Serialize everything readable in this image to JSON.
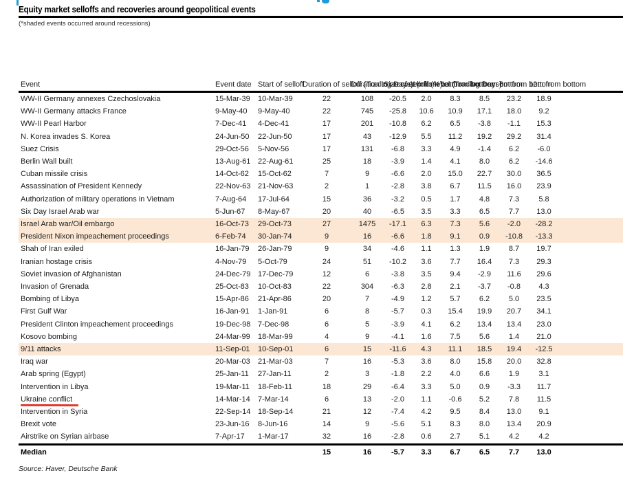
{
  "page": {
    "title": "Equity market selloffs and recoveries around geopolitical events",
    "subtitle": "(*shaded events occurred around recessions)",
    "source": "Source: Haver, Deutsche Bank",
    "colors": {
      "recession_shading": "#fbe7d3",
      "annotation_red": "#e0392e",
      "clipped_header_blue": "#1f9cd8",
      "rule_black": "#000000"
    }
  },
  "table": {
    "columns": [
      {
        "key": "event",
        "label": "Event"
      },
      {
        "key": "event_date",
        "label": "Event date"
      },
      {
        "key": "start_of_selloff",
        "label": "Start of\nselloff"
      },
      {
        "key": "duration_selloff",
        "label": "Duration\nof selloff\n(Trading\nDays)"
      },
      {
        "key": "duration_recover",
        "label": "Duration to\nrecover\nprior level\n(Trading\nDays)"
      },
      {
        "key": "size_selloff",
        "label": "Size of\nselloff\n(%)"
      },
      {
        "key": "w1",
        "label": "1w\nfrom\nbottom"
      },
      {
        "key": "m1",
        "label": "1m\nfrom\nbottom"
      },
      {
        "key": "m3",
        "label": "3m\nfrom\nbottom"
      },
      {
        "key": "m6",
        "label": "6m\nfrom\nbottom"
      },
      {
        "key": "m12",
        "label": "12m\nfrom\nbottom"
      }
    ],
    "rows": [
      {
        "event": "WW-II Germany annexes Czechoslovakia",
        "event_date": "15-Mar-39",
        "start_of_selloff": "10-Mar-39",
        "duration_selloff": "22",
        "duration_recover": "108",
        "size_selloff": "-20.5",
        "w1": "2.0",
        "m1": "8.3",
        "m3": "8.5",
        "m6": "23.2",
        "m12": "18.9"
      },
      {
        "event": "WW-II Germany attacks France",
        "event_date": "9-May-40",
        "start_of_selloff": "9-May-40",
        "duration_selloff": "22",
        "duration_recover": "745",
        "size_selloff": "-25.8",
        "w1": "10.6",
        "m1": "10.9",
        "m3": "17.1",
        "m6": "18.0",
        "m12": "9.2"
      },
      {
        "event": "WW-II Pearl Harbor",
        "event_date": "7-Dec-41",
        "start_of_selloff": "4-Dec-41",
        "duration_selloff": "17",
        "duration_recover": "201",
        "size_selloff": "-10.8",
        "w1": "6.2",
        "m1": "6.5",
        "m3": "-3.8",
        "m6": "-1.1",
        "m12": "15.3"
      },
      {
        "event": "N. Korea invades S. Korea",
        "event_date": "24-Jun-50",
        "start_of_selloff": "22-Jun-50",
        "duration_selloff": "17",
        "duration_recover": "43",
        "size_selloff": "-12.9",
        "w1": "5.5",
        "m1": "11.2",
        "m3": "19.2",
        "m6": "29.2",
        "m12": "31.4"
      },
      {
        "event": "Suez Crisis",
        "event_date": "29-Oct-56",
        "start_of_selloff": "5-Nov-56",
        "duration_selloff": "17",
        "duration_recover": "131",
        "size_selloff": "-6.8",
        "w1": "3.3",
        "m1": "4.9",
        "m3": "-1.4",
        "m6": "6.2",
        "m12": "-6.0"
      },
      {
        "event": "Berlin Wall built",
        "event_date": "13-Aug-61",
        "start_of_selloff": "22-Aug-61",
        "duration_selloff": "25",
        "duration_recover": "18",
        "size_selloff": "-3.9",
        "w1": "1.4",
        "m1": "4.1",
        "m3": "8.0",
        "m6": "6.2",
        "m12": "-14.6"
      },
      {
        "event": "Cuban missile crisis",
        "event_date": "14-Oct-62",
        "start_of_selloff": "15-Oct-62",
        "duration_selloff": "7",
        "duration_recover": "9",
        "size_selloff": "-6.6",
        "w1": "2.0",
        "m1": "15.0",
        "m3": "22.7",
        "m6": "30.0",
        "m12": "36.5"
      },
      {
        "event": "Assassination of President Kennedy",
        "event_date": "22-Nov-63",
        "start_of_selloff": "21-Nov-63",
        "duration_selloff": "2",
        "duration_recover": "1",
        "size_selloff": "-2.8",
        "w1": "3.8",
        "m1": "6.7",
        "m3": "11.5",
        "m6": "16.0",
        "m12": "23.9"
      },
      {
        "event": "Authorization of military operations in Vietnam",
        "event_date": "7-Aug-64",
        "start_of_selloff": "17-Jul-64",
        "duration_selloff": "15",
        "duration_recover": "36",
        "size_selloff": "-3.2",
        "w1": "0.5",
        "m1": "1.7",
        "m3": "4.8",
        "m6": "7.3",
        "m12": "5.8"
      },
      {
        "event": "Six Day Israel Arab war",
        "event_date": "5-Jun-67",
        "start_of_selloff": "8-May-67",
        "duration_selloff": "20",
        "duration_recover": "40",
        "size_selloff": "-6.5",
        "w1": "3.5",
        "m1": "3.3",
        "m3": "6.5",
        "m6": "7.7",
        "m12": "13.0"
      },
      {
        "event": "Israel Arab war/Oil embargo",
        "event_date": "16-Oct-73",
        "start_of_selloff": "29-Oct-73",
        "duration_selloff": "27",
        "duration_recover": "1475",
        "size_selloff": "-17.1",
        "w1": "6.3",
        "m1": "7.3",
        "m3": "5.6",
        "m6": "-2.0",
        "m12": "-28.2",
        "shaded": true
      },
      {
        "event": "President Nixon impeachement proceedings",
        "event_date": "6-Feb-74",
        "start_of_selloff": "30-Jan-74",
        "duration_selloff": "9",
        "duration_recover": "16",
        "size_selloff": "-6.6",
        "w1": "1.8",
        "m1": "9.1",
        "m3": "0.9",
        "m6": "-10.8",
        "m12": "-13.3",
        "shaded": true
      },
      {
        "event": "Shah of Iran exiled",
        "event_date": "16-Jan-79",
        "start_of_selloff": "26-Jan-79",
        "duration_selloff": "9",
        "duration_recover": "34",
        "size_selloff": "-4.6",
        "w1": "1.1",
        "m1": "1.3",
        "m3": "1.9",
        "m6": "8.7",
        "m12": "19.7"
      },
      {
        "event": "Iranian hostage crisis",
        "event_date": "4-Nov-79",
        "start_of_selloff": "5-Oct-79",
        "duration_selloff": "24",
        "duration_recover": "51",
        "size_selloff": "-10.2",
        "w1": "3.6",
        "m1": "7.7",
        "m3": "16.4",
        "m6": "7.3",
        "m12": "29.3"
      },
      {
        "event": "Soviet invasion of Afghanistan",
        "event_date": "24-Dec-79",
        "start_of_selloff": "17-Dec-79",
        "duration_selloff": "12",
        "duration_recover": "6",
        "size_selloff": "-3.8",
        "w1": "3.5",
        "m1": "9.4",
        "m3": "-2.9",
        "m6": "11.6",
        "m12": "29.6"
      },
      {
        "event": "Invasion of Grenada",
        "event_date": "25-Oct-83",
        "start_of_selloff": "10-Oct-83",
        "duration_selloff": "22",
        "duration_recover": "304",
        "size_selloff": "-6.3",
        "w1": "2.8",
        "m1": "2.1",
        "m3": "-3.7",
        "m6": "-0.8",
        "m12": "4.3"
      },
      {
        "event": "Bombing of Libya",
        "event_date": "15-Apr-86",
        "start_of_selloff": "21-Apr-86",
        "duration_selloff": "20",
        "duration_recover": "7",
        "size_selloff": "-4.9",
        "w1": "1.2",
        "m1": "5.7",
        "m3": "6.2",
        "m6": "5.0",
        "m12": "23.5"
      },
      {
        "event": "First Gulf War",
        "event_date": "16-Jan-91",
        "start_of_selloff": "1-Jan-91",
        "duration_selloff": "6",
        "duration_recover": "8",
        "size_selloff": "-5.7",
        "w1": "0.3",
        "m1": "15.4",
        "m3": "19.9",
        "m6": "20.7",
        "m12": "34.1"
      },
      {
        "event": "President Clinton impeachement proceedings",
        "event_date": "19-Dec-98",
        "start_of_selloff": "7-Dec-98",
        "duration_selloff": "6",
        "duration_recover": "5",
        "size_selloff": "-3.9",
        "w1": "4.1",
        "m1": "6.2",
        "m3": "13.4",
        "m6": "13.4",
        "m12": "23.0"
      },
      {
        "event": "Kosovo bombing",
        "event_date": "24-Mar-99",
        "start_of_selloff": "18-Mar-99",
        "duration_selloff": "4",
        "duration_recover": "9",
        "size_selloff": "-4.1",
        "w1": "1.6",
        "m1": "7.5",
        "m3": "5.6",
        "m6": "1.4",
        "m12": "21.0"
      },
      {
        "event": "9/11 attacks",
        "event_date": "11-Sep-01",
        "start_of_selloff": "10-Sep-01",
        "duration_selloff": "6",
        "duration_recover": "15",
        "size_selloff": "-11.6",
        "w1": "4.3",
        "m1": "11.1",
        "m3": "18.5",
        "m6": "19.4",
        "m12": "-12.5",
        "shaded": true
      },
      {
        "event": "Iraq war",
        "event_date": "20-Mar-03",
        "start_of_selloff": "21-Mar-03",
        "duration_selloff": "7",
        "duration_recover": "16",
        "size_selloff": "-5.3",
        "w1": "3.6",
        "m1": "8.0",
        "m3": "15.8",
        "m6": "20.0",
        "m12": "32.8"
      },
      {
        "event": "Arab spring (Egypt)",
        "event_date": "25-Jan-11",
        "start_of_selloff": "27-Jan-11",
        "duration_selloff": "2",
        "duration_recover": "3",
        "size_selloff": "-1.8",
        "w1": "2.2",
        "m1": "4.0",
        "m3": "6.6",
        "m6": "1.9",
        "m12": "3.1"
      },
      {
        "event": "Intervention in Libya",
        "event_date": "19-Mar-11",
        "start_of_selloff": "18-Feb-11",
        "duration_selloff": "18",
        "duration_recover": "29",
        "size_selloff": "-6.4",
        "w1": "3.3",
        "m1": "5.0",
        "m3": "0.9",
        "m6": "-3.3",
        "m12": "11.7"
      },
      {
        "event": "Ukraine conflict",
        "event_date": "14-Mar-14",
        "start_of_selloff": "7-Mar-14",
        "duration_selloff": "6",
        "duration_recover": "13",
        "size_selloff": "-2.0",
        "w1": "1.1",
        "m1": "-0.6",
        "m3": "5.2",
        "m6": "7.8",
        "m12": "11.5",
        "underlined": true
      },
      {
        "event": "Intervention in Syria",
        "event_date": "22-Sep-14",
        "start_of_selloff": "18-Sep-14",
        "duration_selloff": "21",
        "duration_recover": "12",
        "size_selloff": "-7.4",
        "w1": "4.2",
        "m1": "9.5",
        "m3": "8.4",
        "m6": "13.0",
        "m12": "9.1"
      },
      {
        "event": "Brexit vote",
        "event_date": "23-Jun-16",
        "start_of_selloff": "8-Jun-16",
        "duration_selloff": "14",
        "duration_recover": "9",
        "size_selloff": "-5.6",
        "w1": "5.1",
        "m1": "8.3",
        "m3": "8.0",
        "m6": "13.4",
        "m12": "20.9"
      },
      {
        "event": "Airstrike on Syrian airbase",
        "event_date": "7-Apr-17",
        "start_of_selloff": "1-Mar-17",
        "duration_selloff": "32",
        "duration_recover": "16",
        "size_selloff": "-2.8",
        "w1": "0.6",
        "m1": "2.7",
        "m3": "5.1",
        "m6": "4.2",
        "m12": "4.2"
      }
    ],
    "median": {
      "event": "Median",
      "event_date": "",
      "start_of_selloff": "",
      "duration_selloff": "15",
      "duration_recover": "16",
      "size_selloff": "-5.7",
      "w1": "3.3",
      "m1": "6.7",
      "m3": "6.5",
      "m6": "7.7",
      "m12": "13.0"
    }
  }
}
